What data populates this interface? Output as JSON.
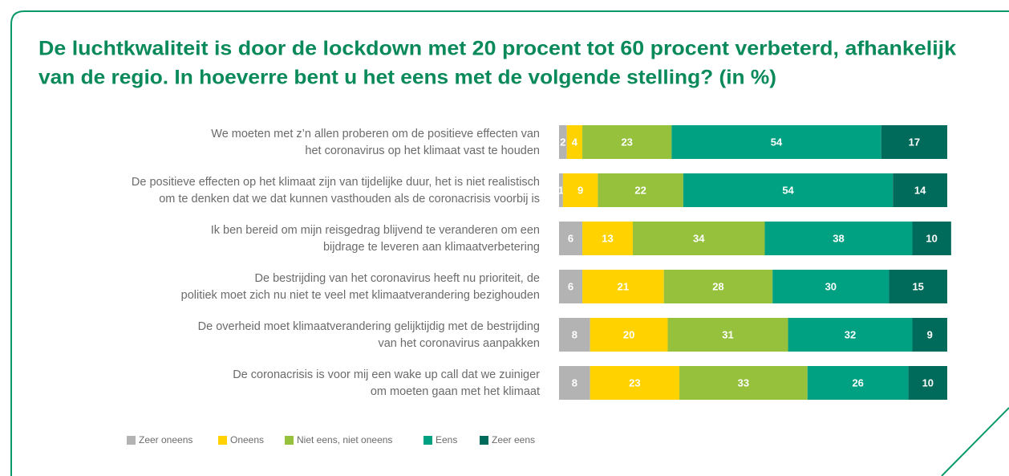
{
  "chart_data": {
    "type": "stacked-bar-horizontal",
    "title": [
      "De luchtkwaliteit is door de lockdown met 20 procent tot 60 procent verbeterd, afhankelijk",
      "van de regio. In hoeverre bent u het eens met de volgende stelling? (in %)"
    ],
    "categories": [
      [
        "We moeten met z’n allen proberen om de positieve effecten van",
        "het coronavirus op het klimaat vast te houden"
      ],
      [
        "De positieve effecten op het klimaat zijn van tijdelijke duur, het is niet realistisch",
        "om te denken dat we dat kunnen vasthouden als de coronacrisis voorbij is"
      ],
      [
        "Ik ben bereid om mijn reisgedrag blijvend te veranderen om een",
        "bijdrage te leveren aan klimaatverbetering"
      ],
      [
        "De bestrijding van het coronavirus heeft nu prioriteit, de",
        "politiek moet zich nu niet te veel met klimaatverandering bezighouden"
      ],
      [
        "De overheid moet klimaatverandering gelijktijdig met de bestrijding",
        "van het coronavirus aanpakken"
      ],
      [
        "De coronacrisis is voor mij een wake up call dat we zuiniger",
        "om moeten gaan met het klimaat"
      ]
    ],
    "series": [
      {
        "name": "Zeer oneens",
        "color": "#b3b3b3",
        "values": [
          2,
          1,
          6,
          6,
          8,
          8
        ]
      },
      {
        "name": "Oneens",
        "color": "#ffd200",
        "values": [
          4,
          9,
          13,
          21,
          20,
          23
        ]
      },
      {
        "name": "Niet eens, niet oneens",
        "color": "#95c13d",
        "values": [
          23,
          22,
          34,
          28,
          31,
          33
        ]
      },
      {
        "name": "Eens",
        "color": "#00a082",
        "values": [
          54,
          54,
          38,
          30,
          32,
          26
        ]
      },
      {
        "name": "Zeer eens",
        "color": "#006b5a",
        "values": [
          17,
          14,
          10,
          15,
          9,
          10
        ]
      }
    ],
    "xlim": [
      0,
      100
    ],
    "legend": "bottom"
  }
}
